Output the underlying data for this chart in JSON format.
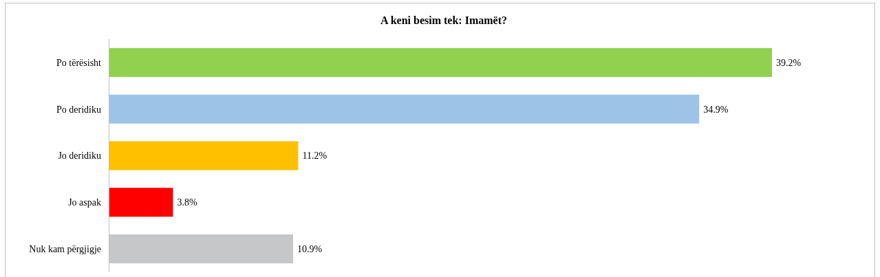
{
  "chart_data": {
    "type": "bar",
    "orientation": "horizontal",
    "title": "A keni besim tek: Imamët?",
    "categories": [
      "Po tërësisht",
      "Po deridiku",
      "Jo deridiku",
      "Jo aspak",
      "Nuk kam përgjigje"
    ],
    "values": [
      39.2,
      34.9,
      11.2,
      3.8,
      10.9
    ],
    "colors": [
      "#92d050",
      "#9dc3e6",
      "#ffc000",
      "#ff0000",
      "#c6c7c9"
    ],
    "value_labels": [
      "39.2%",
      "34.9%",
      "11.2%",
      "3.8%",
      "10.9%"
    ]
  }
}
